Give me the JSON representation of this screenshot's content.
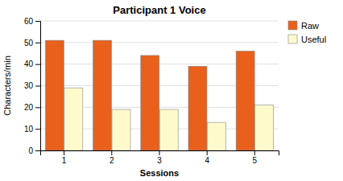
{
  "chart_data": {
    "type": "bar",
    "title": "Participant 1 Voice",
    "xlabel": "Sessions",
    "ylabel": "Characters/min",
    "categories": [
      "1",
      "2",
      "3",
      "4",
      "5"
    ],
    "series": [
      {
        "name": "Raw",
        "color": "#E8601C",
        "values": [
          51,
          51,
          44,
          39,
          46
        ]
      },
      {
        "name": "Useful",
        "color": "#FFFACC",
        "values": [
          29,
          19,
          19,
          13,
          21
        ]
      }
    ],
    "ylim": [
      0,
      60
    ],
    "yticks": [
      0,
      10,
      20,
      30,
      40,
      50,
      60
    ],
    "grid": true,
    "legend": "upper right"
  }
}
